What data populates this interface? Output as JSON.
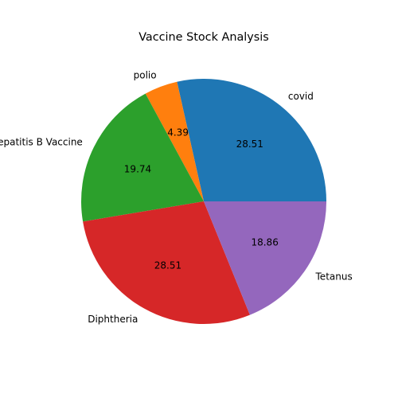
{
  "chart_data": {
    "type": "pie",
    "title": "Vaccine Stock Analysis",
    "labels": [
      "covid",
      "polio",
      "Hepatitis B Vaccine",
      "Diphtheria",
      "Tetanus"
    ],
    "values": [
      28.51,
      4.39,
      19.74,
      28.51,
      18.86
    ],
    "value_labels": [
      "28.51",
      "4.39",
      "19.74",
      "28.51",
      "18.86"
    ],
    "colors": [
      "#1f77b4",
      "#ff7f0e",
      "#2ca02c",
      "#d62728",
      "#9467bd"
    ],
    "start_angle_deg": 0,
    "direction": "counterclockwise",
    "legend": "none"
  }
}
